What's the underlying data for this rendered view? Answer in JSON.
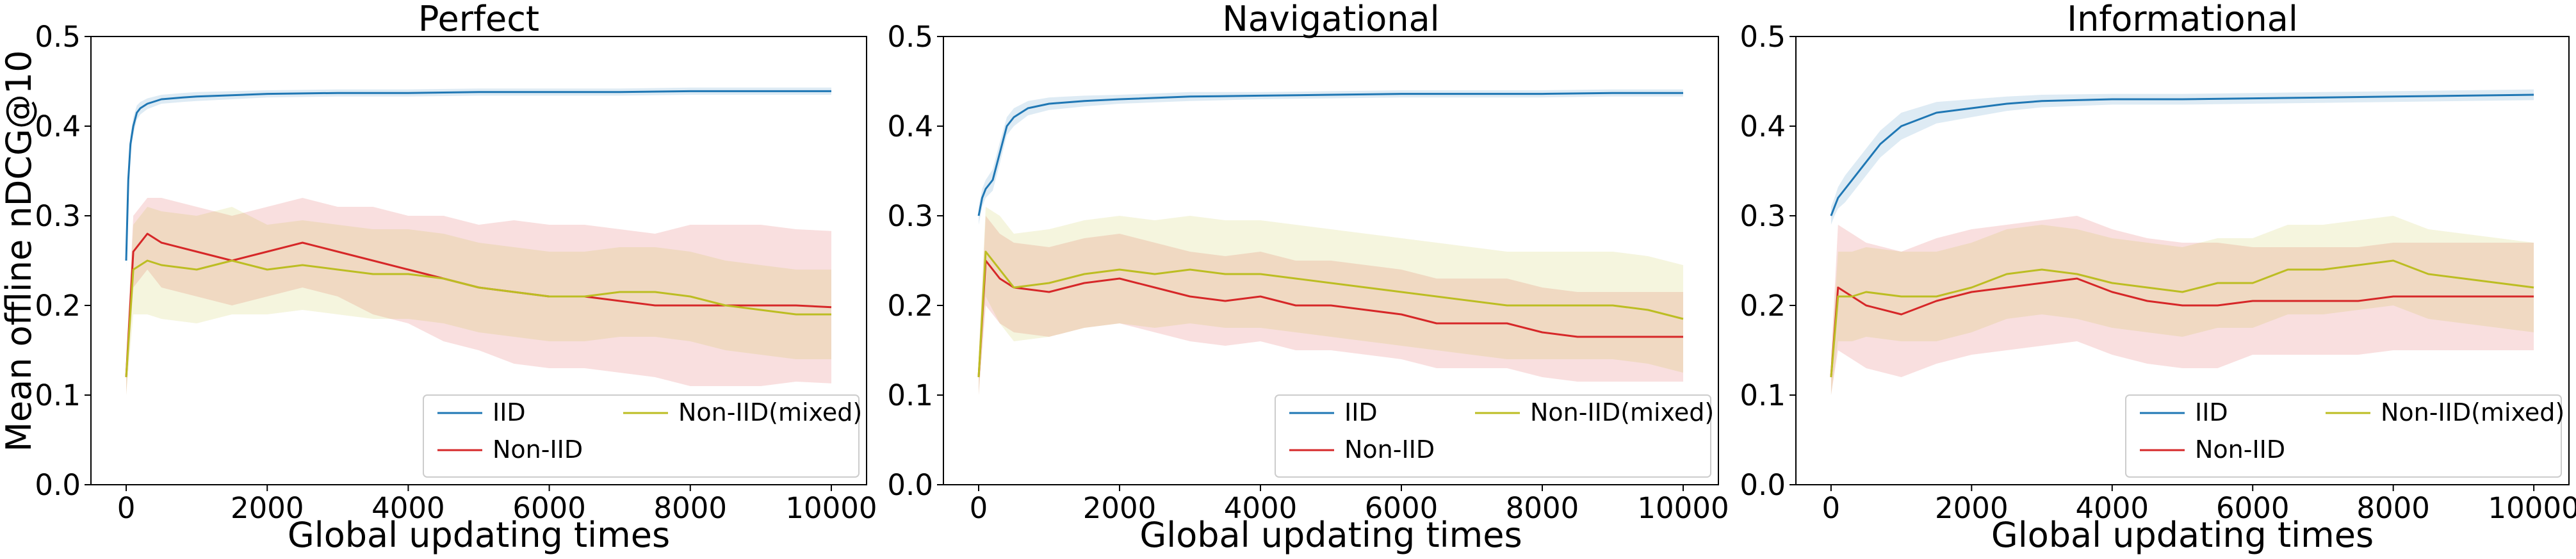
{
  "figure": {
    "ylabel": "Mean offline nDCG@10",
    "xlabel": "Global updating times"
  },
  "chart_data": [
    {
      "type": "line",
      "title": "Perfect",
      "xlabel": "Global updating times",
      "ylabel": "Mean offline nDCG@10",
      "xlim": [
        -500,
        10500
      ],
      "ylim": [
        0.0,
        0.5
      ],
      "xticks": [
        "0",
        "2000",
        "4000",
        "6000",
        "8000",
        "10000"
      ],
      "yticks": [
        "0.0",
        "0.1",
        "0.2",
        "0.3",
        "0.4",
        "0.5"
      ],
      "legend": {
        "placement": "lower-right",
        "columns": 2
      },
      "series": [
        {
          "name": "IID",
          "color": "#1f77b4",
          "x": [
            0,
            30,
            60,
            100,
            150,
            200,
            300,
            500,
            800,
            1000,
            2000,
            3000,
            4000,
            5000,
            6000,
            7000,
            8000,
            9000,
            10000
          ],
          "y": [
            0.25,
            0.34,
            0.38,
            0.4,
            0.415,
            0.42,
            0.425,
            0.43,
            0.432,
            0.433,
            0.436,
            0.437,
            0.437,
            0.438,
            0.438,
            0.438,
            0.439,
            0.439,
            0.439
          ],
          "band": [
            0.008,
            0.01,
            0.01,
            0.01,
            0.008,
            0.007,
            0.006,
            0.005,
            0.005,
            0.005,
            0.004,
            0.004,
            0.004,
            0.004,
            0.004,
            0.004,
            0.004,
            0.004,
            0.004
          ]
        },
        {
          "name": "Non-IID",
          "color": "#d62728",
          "x": [
            0,
            100,
            300,
            500,
            1000,
            1500,
            2000,
            2500,
            3000,
            3500,
            4000,
            4500,
            5000,
            5500,
            6000,
            6500,
            7000,
            7500,
            8000,
            8500,
            9000,
            9500,
            10000
          ],
          "y": [
            0.12,
            0.26,
            0.28,
            0.27,
            0.26,
            0.25,
            0.26,
            0.27,
            0.26,
            0.25,
            0.24,
            0.23,
            0.22,
            0.215,
            0.21,
            0.21,
            0.205,
            0.2,
            0.2,
            0.2,
            0.2,
            0.2,
            0.198
          ],
          "band": [
            0.02,
            0.04,
            0.04,
            0.05,
            0.05,
            0.05,
            0.05,
            0.05,
            0.05,
            0.06,
            0.06,
            0.07,
            0.07,
            0.08,
            0.08,
            0.08,
            0.08,
            0.08,
            0.09,
            0.09,
            0.09,
            0.085,
            0.085
          ]
        },
        {
          "name": "Non-IID(mixed)",
          "color": "#bcbd22",
          "x": [
            0,
            100,
            300,
            500,
            1000,
            1500,
            2000,
            2500,
            3000,
            3500,
            4000,
            4500,
            5000,
            5500,
            6000,
            6500,
            7000,
            7500,
            8000,
            8500,
            9000,
            9500,
            10000
          ],
          "y": [
            0.12,
            0.24,
            0.25,
            0.245,
            0.24,
            0.25,
            0.24,
            0.245,
            0.24,
            0.235,
            0.235,
            0.23,
            0.22,
            0.215,
            0.21,
            0.21,
            0.215,
            0.215,
            0.21,
            0.2,
            0.195,
            0.19,
            0.19
          ],
          "band": [
            0.02,
            0.05,
            0.06,
            0.06,
            0.06,
            0.06,
            0.05,
            0.05,
            0.05,
            0.05,
            0.05,
            0.05,
            0.05,
            0.05,
            0.05,
            0.05,
            0.05,
            0.05,
            0.05,
            0.05,
            0.05,
            0.05,
            0.05
          ]
        }
      ]
    },
    {
      "type": "line",
      "title": "Navigational",
      "xlabel": "Global updating times",
      "xlim": [
        -500,
        10500
      ],
      "ylim": [
        0.0,
        0.5
      ],
      "xticks": [
        "0",
        "2000",
        "4000",
        "6000",
        "8000",
        "10000"
      ],
      "yticks": [
        "0.0",
        "0.1",
        "0.2",
        "0.3",
        "0.4",
        "0.5"
      ],
      "legend": {
        "placement": "lower-right",
        "columns": 2
      },
      "series": [
        {
          "name": "IID",
          "color": "#1f77b4",
          "x": [
            0,
            50,
            100,
            200,
            300,
            400,
            500,
            700,
            1000,
            1500,
            2000,
            3000,
            4000,
            5000,
            6000,
            7000,
            8000,
            9000,
            10000
          ],
          "y": [
            0.3,
            0.32,
            0.33,
            0.34,
            0.37,
            0.4,
            0.41,
            0.42,
            0.425,
            0.428,
            0.43,
            0.433,
            0.434,
            0.435,
            0.436,
            0.436,
            0.436,
            0.437,
            0.437
          ],
          "band": [
            0.01,
            0.01,
            0.01,
            0.012,
            0.012,
            0.01,
            0.01,
            0.008,
            0.007,
            0.006,
            0.005,
            0.005,
            0.004,
            0.004,
            0.004,
            0.004,
            0.004,
            0.004,
            0.004
          ]
        },
        {
          "name": "Non-IID",
          "color": "#d62728",
          "x": [
            0,
            100,
            300,
            500,
            1000,
            1500,
            2000,
            2500,
            3000,
            3500,
            4000,
            4500,
            5000,
            5500,
            6000,
            6500,
            7000,
            7500,
            8000,
            8500,
            9000,
            9500,
            10000
          ],
          "y": [
            0.12,
            0.25,
            0.23,
            0.22,
            0.215,
            0.225,
            0.23,
            0.22,
            0.21,
            0.205,
            0.21,
            0.2,
            0.2,
            0.195,
            0.19,
            0.18,
            0.18,
            0.18,
            0.17,
            0.165,
            0.165,
            0.165,
            0.165
          ],
          "band": [
            0.02,
            0.05,
            0.05,
            0.05,
            0.05,
            0.05,
            0.05,
            0.05,
            0.05,
            0.05,
            0.05,
            0.05,
            0.05,
            0.05,
            0.05,
            0.05,
            0.05,
            0.05,
            0.05,
            0.05,
            0.05,
            0.05,
            0.05
          ]
        },
        {
          "name": "Non-IID(mixed)",
          "color": "#bcbd22",
          "x": [
            0,
            100,
            300,
            500,
            1000,
            1500,
            2000,
            2500,
            3000,
            3500,
            4000,
            4500,
            5000,
            5500,
            6000,
            6500,
            7000,
            7500,
            8000,
            8500,
            9000,
            9500,
            10000
          ],
          "y": [
            0.12,
            0.26,
            0.24,
            0.22,
            0.225,
            0.235,
            0.24,
            0.235,
            0.24,
            0.235,
            0.235,
            0.23,
            0.225,
            0.22,
            0.215,
            0.21,
            0.205,
            0.2,
            0.2,
            0.2,
            0.2,
            0.195,
            0.185
          ],
          "band": [
            0.02,
            0.05,
            0.06,
            0.06,
            0.06,
            0.06,
            0.06,
            0.06,
            0.06,
            0.06,
            0.06,
            0.06,
            0.06,
            0.06,
            0.06,
            0.06,
            0.06,
            0.06,
            0.06,
            0.06,
            0.06,
            0.06,
            0.06
          ]
        }
      ]
    },
    {
      "type": "line",
      "title": "Informational",
      "xlabel": "Global updating times",
      "xlim": [
        -500,
        10500
      ],
      "ylim": [
        0.0,
        0.5
      ],
      "xticks": [
        "0",
        "2000",
        "4000",
        "6000",
        "8000",
        "10000"
      ],
      "yticks": [
        "0.0",
        "0.1",
        "0.2",
        "0.3",
        "0.4",
        "0.5"
      ],
      "legend": {
        "placement": "lower-right",
        "columns": 2
      },
      "series": [
        {
          "name": "IID",
          "color": "#1f77b4",
          "x": [
            0,
            50,
            100,
            200,
            300,
            500,
            700,
            1000,
            1500,
            2000,
            2500,
            3000,
            4000,
            5000,
            6000,
            7000,
            8000,
            9000,
            10000
          ],
          "y": [
            0.3,
            0.31,
            0.32,
            0.33,
            0.34,
            0.36,
            0.38,
            0.4,
            0.415,
            0.42,
            0.425,
            0.428,
            0.43,
            0.43,
            0.431,
            0.432,
            0.433,
            0.434,
            0.435
          ],
          "band": [
            0.01,
            0.01,
            0.012,
            0.015,
            0.015,
            0.015,
            0.015,
            0.015,
            0.012,
            0.01,
            0.008,
            0.007,
            0.006,
            0.006,
            0.006,
            0.006,
            0.006,
            0.006,
            0.006
          ]
        },
        {
          "name": "Non-IID",
          "color": "#d62728",
          "x": [
            0,
            100,
            300,
            500,
            1000,
            1500,
            2000,
            2500,
            3000,
            3500,
            4000,
            4500,
            5000,
            5500,
            6000,
            6500,
            7000,
            7500,
            8000,
            8500,
            9000,
            9500,
            10000
          ],
          "y": [
            0.12,
            0.22,
            0.21,
            0.2,
            0.19,
            0.205,
            0.215,
            0.22,
            0.225,
            0.23,
            0.215,
            0.205,
            0.2,
            0.2,
            0.205,
            0.205,
            0.205,
            0.205,
            0.21,
            0.21,
            0.21,
            0.21,
            0.21
          ],
          "band": [
            0.02,
            0.07,
            0.07,
            0.07,
            0.07,
            0.07,
            0.07,
            0.07,
            0.07,
            0.07,
            0.07,
            0.07,
            0.07,
            0.07,
            0.06,
            0.06,
            0.06,
            0.06,
            0.06,
            0.06,
            0.06,
            0.06,
            0.06
          ]
        },
        {
          "name": "Non-IID(mixed)",
          "color": "#bcbd22",
          "x": [
            0,
            100,
            300,
            500,
            1000,
            1500,
            2000,
            2500,
            3000,
            3500,
            4000,
            4500,
            5000,
            5500,
            6000,
            6500,
            7000,
            7500,
            8000,
            8500,
            9000,
            9500,
            10000
          ],
          "y": [
            0.12,
            0.21,
            0.21,
            0.215,
            0.21,
            0.21,
            0.22,
            0.235,
            0.24,
            0.235,
            0.225,
            0.22,
            0.215,
            0.225,
            0.225,
            0.24,
            0.24,
            0.245,
            0.25,
            0.235,
            0.23,
            0.225,
            0.22
          ],
          "band": [
            0.02,
            0.05,
            0.05,
            0.05,
            0.05,
            0.05,
            0.05,
            0.05,
            0.05,
            0.05,
            0.05,
            0.05,
            0.05,
            0.05,
            0.05,
            0.05,
            0.05,
            0.05,
            0.05,
            0.05,
            0.05,
            0.05,
            0.05
          ]
        }
      ]
    }
  ]
}
